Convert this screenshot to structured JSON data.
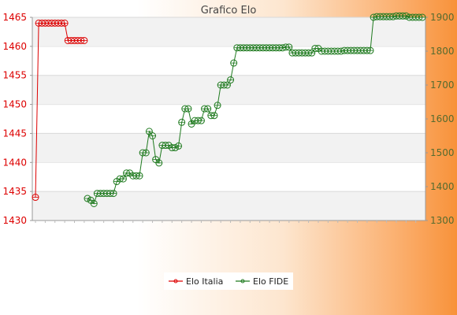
{
  "chart_data": {
    "type": "line",
    "title": "Grafico Elo",
    "xlabel": "",
    "left_axis": {
      "ylim": [
        1430,
        1465
      ],
      "ticks": [
        1430,
        1435,
        1440,
        1445,
        1450,
        1455,
        1460,
        1465
      ],
      "color": "#dd0000"
    },
    "right_axis": {
      "ylim": [
        1300,
        1900
      ],
      "ticks": [
        1300,
        1400,
        1500,
        1600,
        1700,
        1800,
        1900
      ],
      "color": "#556b2f"
    },
    "grid": true,
    "legend_placement": "bottom-center",
    "x_count": 120,
    "series": [
      {
        "name": "Elo Italia",
        "axis": "left",
        "color": "#dd0000",
        "x": [
          0,
          1,
          2,
          3,
          4,
          5,
          6,
          7,
          8,
          9,
          10,
          11,
          12,
          13,
          14,
          15
        ],
        "values": [
          1434,
          1464,
          1464,
          1464,
          1464,
          1464,
          1464,
          1464,
          1464,
          1464,
          1461,
          1461,
          1461,
          1461,
          1461,
          1461
        ]
      },
      {
        "name": "Elo FIDE",
        "axis": "right",
        "color": "#1f7a1f",
        "x": [
          16,
          17,
          18,
          19,
          20,
          21,
          22,
          23,
          24,
          25,
          26,
          27,
          28,
          29,
          30,
          31,
          32,
          33,
          34,
          35,
          36,
          37,
          38,
          39,
          40,
          41,
          42,
          43,
          44,
          45,
          46,
          47,
          48,
          49,
          50,
          51,
          52,
          53,
          54,
          55,
          56,
          57,
          58,
          59,
          60,
          61,
          62,
          63,
          64,
          65,
          66,
          67,
          68,
          69,
          70,
          71,
          72,
          73,
          74,
          75,
          76,
          77,
          78,
          79,
          80,
          81,
          82,
          83,
          84,
          85,
          86,
          87,
          88,
          89,
          90,
          91,
          92,
          93,
          94,
          95,
          96,
          97,
          98,
          99,
          100,
          101,
          102,
          103,
          104,
          105,
          106,
          107,
          108,
          109,
          110,
          111,
          112,
          113,
          114,
          115,
          116,
          117,
          118,
          119
        ],
        "values": [
          1365,
          1360,
          1350,
          1380,
          1380,
          1380,
          1380,
          1380,
          1380,
          1415,
          1423,
          1423,
          1440,
          1440,
          1432,
          1432,
          1432,
          1500,
          1500,
          1563,
          1550,
          1480,
          1470,
          1522,
          1522,
          1522,
          1515,
          1515,
          1520,
          1590,
          1630,
          1630,
          1585,
          1595,
          1595,
          1595,
          1630,
          1630,
          1610,
          1610,
          1640,
          1700,
          1700,
          1700,
          1715,
          1765,
          1810,
          1810,
          1810,
          1810,
          1810,
          1810,
          1810,
          1810,
          1810,
          1810,
          1810,
          1810,
          1810,
          1810,
          1810,
          1812,
          1812,
          1795,
          1795,
          1795,
          1795,
          1795,
          1795,
          1795,
          1808,
          1808,
          1800,
          1800,
          1800,
          1800,
          1800,
          1800,
          1800,
          1802,
          1802,
          1802,
          1802,
          1802,
          1802,
          1802,
          1802,
          1802,
          1900,
          1902,
          1902,
          1902,
          1902,
          1902,
          1902,
          1904,
          1904,
          1904,
          1904,
          1900,
          1900,
          1900,
          1900,
          1900
        ]
      }
    ]
  }
}
